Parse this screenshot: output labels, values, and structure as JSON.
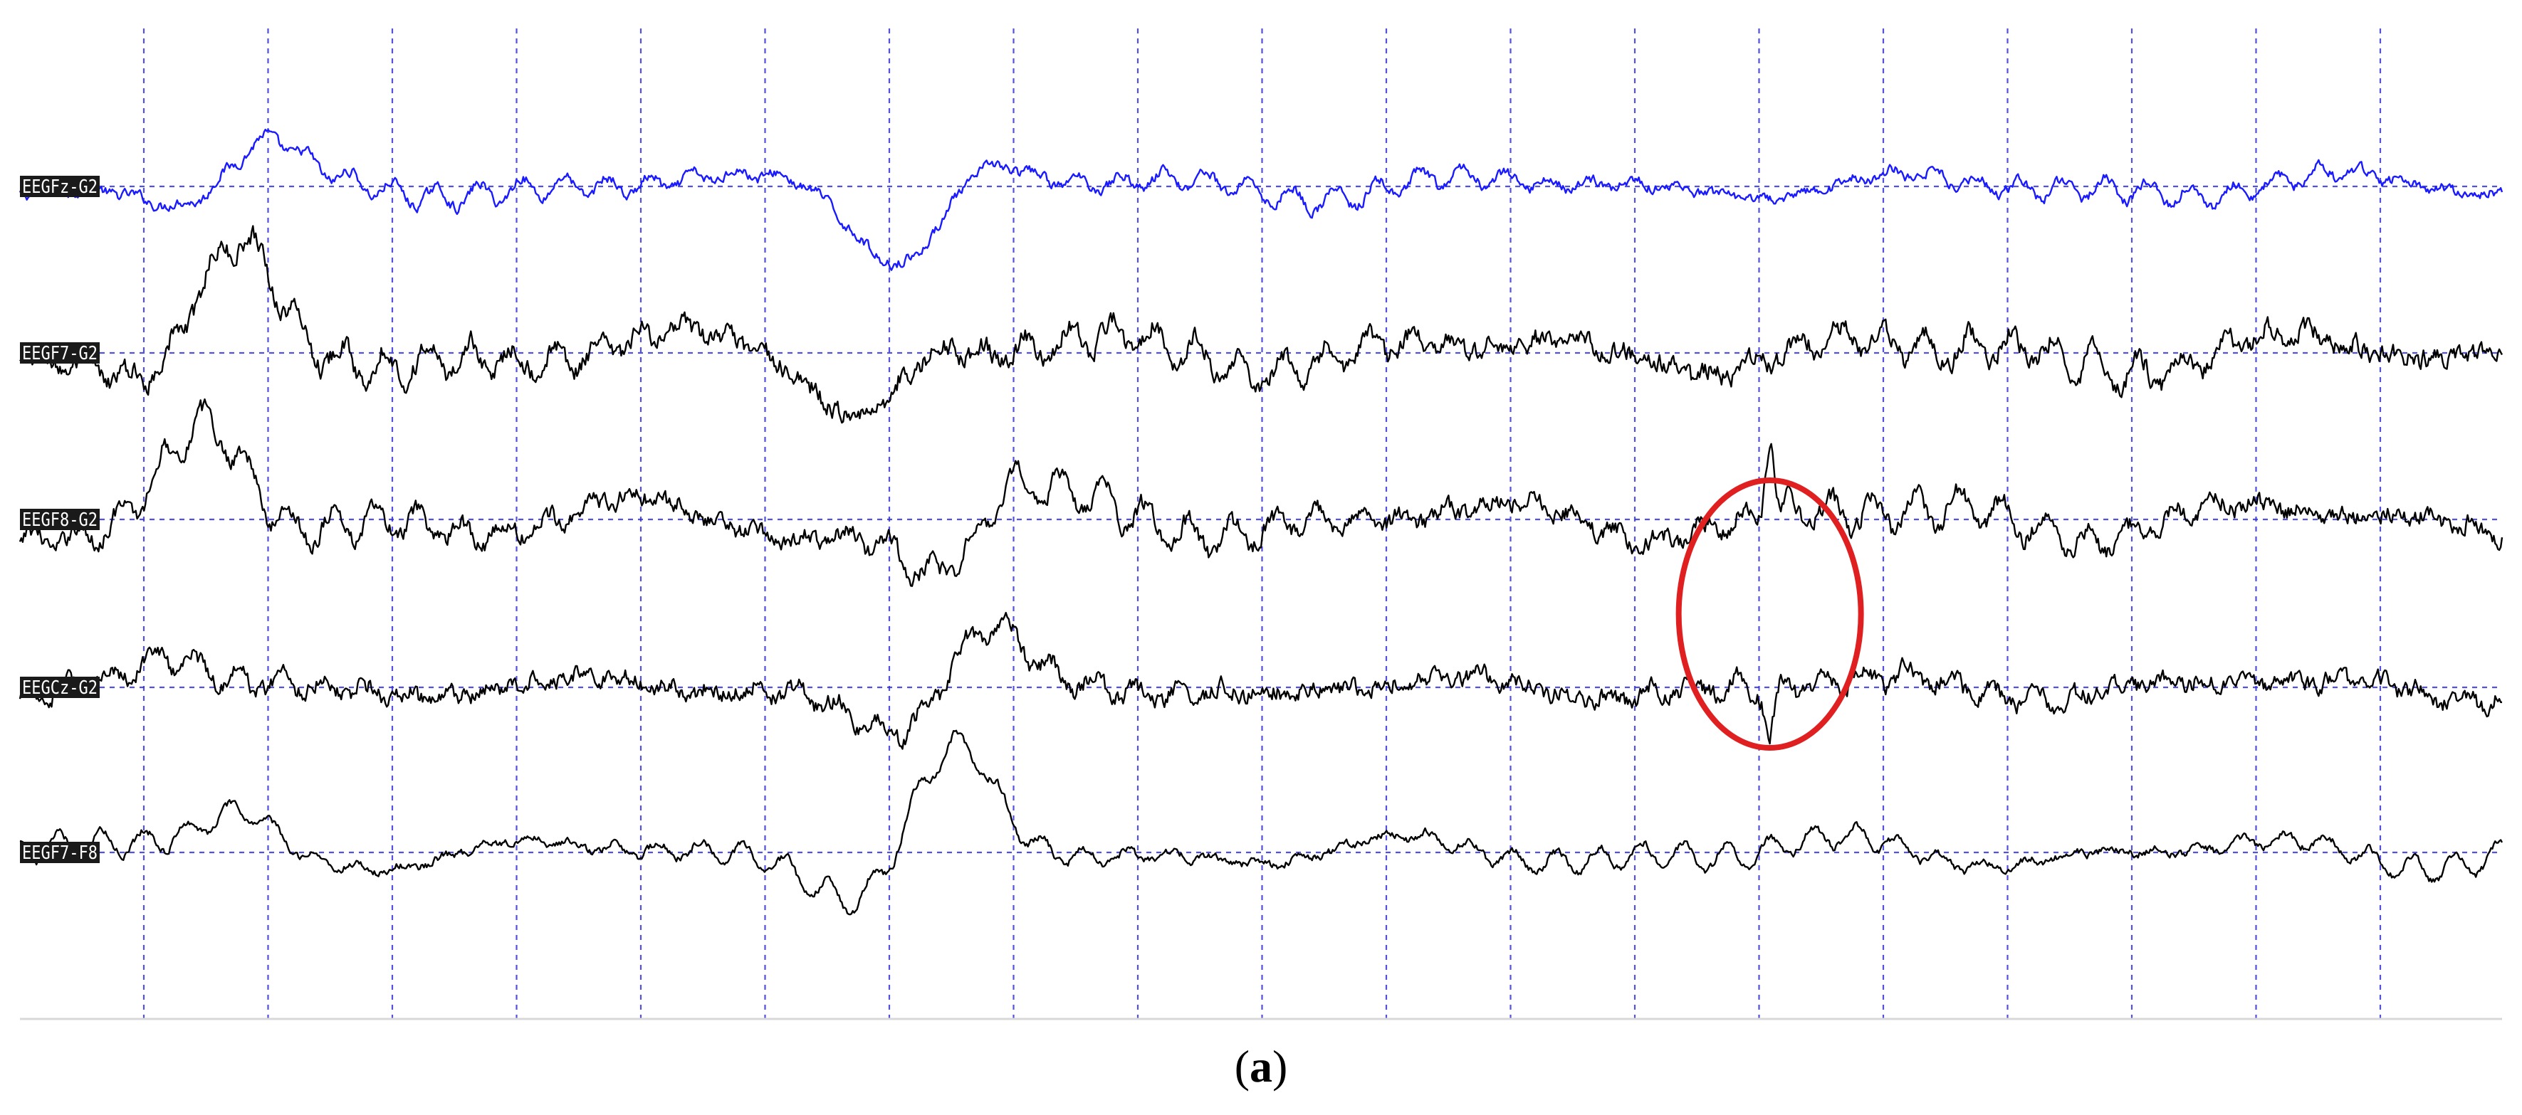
{
  "caption": {
    "open": "(",
    "letter": "a",
    "close": ")"
  },
  "colors": {
    "background": "#ffffff",
    "trace_primary": "#1a1aff",
    "trace_default": "#000000",
    "grid": "#3333dd",
    "label_bg": "#1a1a1a",
    "label_text": "#ffffff",
    "annotation": "#e02020",
    "axis_line": "#d8d8d8"
  },
  "chart_data": {
    "type": "line",
    "title": "",
    "xlabel": "",
    "ylabel": "",
    "grid": {
      "vertical_dashed": true,
      "horizontal_baselines": true,
      "vertical_divisions": 20
    },
    "series": [
      {
        "name": "EEGFz-G2",
        "color": "#1a1aff"
      },
      {
        "name": "EEGF7-G2",
        "color": "#000000"
      },
      {
        "name": "EEGF8-G2",
        "color": "#000000"
      },
      {
        "name": "EEGCz-G2",
        "color": "#000000"
      },
      {
        "name": "EEGF7-F8",
        "color": "#000000"
      }
    ],
    "annotations": [
      {
        "type": "ellipse",
        "color": "#e02020",
        "time_fraction": 0.705,
        "channel_span": [
          "EEGF8-G2",
          "EEGCz-G2"
        ]
      }
    ]
  }
}
